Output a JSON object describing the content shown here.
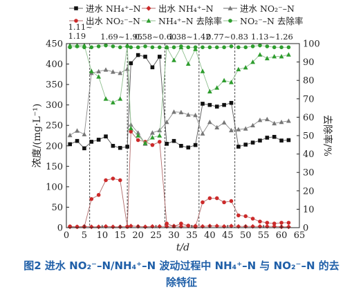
{
  "chart_data": {
    "type": "line",
    "x": [
      1,
      2,
      3,
      4,
      5,
      6,
      7,
      8,
      9,
      10,
      11,
      12,
      13,
      14,
      15,
      16,
      17,
      18,
      19,
      20,
      21,
      22,
      23,
      24,
      25,
      26,
      27,
      28,
      29,
      30,
      31,
      32,
      33,
      34,
      35,
      36,
      37,
      38,
      39,
      40,
      41,
      42,
      43,
      44,
      45,
      46,
      47,
      48,
      49,
      50,
      51,
      52,
      53,
      54,
      55,
      56,
      57,
      58,
      59,
      60,
      61,
      62
    ],
    "xlabel": "t/d",
    "xlim": [
      0,
      65
    ],
    "xticks": [
      0,
      5,
      10,
      15,
      20,
      25,
      30,
      35,
      40,
      45,
      50,
      55,
      60,
      65
    ],
    "ylabel": "浓度/(mg·L⁻¹)",
    "ylim": [
      0,
      450
    ],
    "yticks": [
      0,
      50,
      100,
      150,
      200,
      250,
      300,
      350,
      400,
      450
    ],
    "y2label": "去除率/%",
    "y2lim": [
      0,
      100
    ],
    "y2ticks": [
      0,
      10,
      20,
      30,
      40,
      50,
      60,
      70,
      80,
      90,
      100
    ],
    "phase_boundaries": [
      6.5,
      17,
      27.5,
      37,
      47
    ],
    "phase_labels": [
      {
        "text": "1.11~\n1.19",
        "x": 0.5
      },
      {
        "text": "1.69~1.95",
        "x": 9.5
      },
      {
        "text": "0.58~0.60",
        "x": 19
      },
      {
        "text": "1.38~1.42",
        "x": 28.5
      },
      {
        "text": "0.77~0.83",
        "x": 39
      },
      {
        "text": "1.13~1.26",
        "x": 51.5
      }
    ],
    "series": [
      {
        "name": "进水 NH₄⁺–N",
        "axis": "left",
        "color": "#111111",
        "marker": "square",
        "points": [
          [
            1,
            204
          ],
          [
            3,
            212
          ],
          [
            5,
            194
          ],
          [
            7,
            210
          ],
          [
            9,
            215
          ],
          [
            11,
            223
          ],
          [
            13,
            200
          ],
          [
            15,
            195
          ],
          [
            17,
            198
          ],
          [
            18,
            402
          ],
          [
            20,
            422
          ],
          [
            22,
            418
          ],
          [
            24,
            392
          ],
          [
            26,
            418
          ],
          [
            28,
            205
          ],
          [
            30,
            212
          ],
          [
            32,
            200
          ],
          [
            34,
            196
          ],
          [
            36,
            202
          ],
          [
            38,
            303
          ],
          [
            40,
            300
          ],
          [
            42,
            296
          ],
          [
            44,
            300
          ],
          [
            46,
            305
          ],
          [
            48,
            198
          ],
          [
            50,
            203
          ],
          [
            52,
            208
          ],
          [
            54,
            213
          ],
          [
            56,
            220
          ],
          [
            58,
            222
          ],
          [
            60,
            213
          ],
          [
            62,
            214
          ]
        ]
      },
      {
        "name": "出水 NH₄⁺–N",
        "axis": "left",
        "color": "#cc2a2a",
        "marker": "diamond",
        "points": [
          [
            1,
            2
          ],
          [
            3,
            2
          ],
          [
            5,
            3
          ],
          [
            7,
            2
          ],
          [
            9,
            2
          ],
          [
            11,
            3
          ],
          [
            13,
            2
          ],
          [
            15,
            2
          ],
          [
            17,
            3
          ],
          [
            18,
            4
          ],
          [
            20,
            3
          ],
          [
            22,
            2
          ],
          [
            24,
            3
          ],
          [
            26,
            3
          ],
          [
            28,
            3
          ],
          [
            30,
            4
          ],
          [
            32,
            3
          ],
          [
            34,
            4
          ],
          [
            36,
            4
          ],
          [
            38,
            3
          ],
          [
            40,
            4
          ],
          [
            42,
            4
          ],
          [
            44,
            3
          ],
          [
            46,
            4
          ],
          [
            48,
            3
          ],
          [
            50,
            3
          ],
          [
            52,
            3
          ],
          [
            54,
            3
          ],
          [
            56,
            3
          ],
          [
            58,
            3
          ],
          [
            60,
            2
          ],
          [
            62,
            2
          ]
        ]
      },
      {
        "name": "进水 NO₂⁻–N",
        "axis": "left",
        "color": "#777777",
        "marker": "triangle",
        "points": [
          [
            1,
            226
          ],
          [
            3,
            237
          ],
          [
            5,
            228
          ],
          [
            7,
            378
          ],
          [
            9,
            382
          ],
          [
            11,
            386
          ],
          [
            13,
            381
          ],
          [
            15,
            378
          ],
          [
            17,
            388
          ],
          [
            18,
            252
          ],
          [
            20,
            232
          ],
          [
            22,
            205
          ],
          [
            24,
            232
          ],
          [
            26,
            238
          ],
          [
            28,
            258
          ],
          [
            30,
            283
          ],
          [
            32,
            282
          ],
          [
            34,
            276
          ],
          [
            36,
            275
          ],
          [
            38,
            230
          ],
          [
            40,
            258
          ],
          [
            42,
            245
          ],
          [
            44,
            257
          ],
          [
            46,
            238
          ],
          [
            48,
            240
          ],
          [
            50,
            242
          ],
          [
            52,
            250
          ],
          [
            54,
            263
          ],
          [
            56,
            265
          ],
          [
            58,
            255
          ],
          [
            60,
            258
          ],
          [
            62,
            261
          ]
        ]
      },
      {
        "name": "出水 NO₂⁻–N",
        "axis": "left",
        "color": "#cc2a2a",
        "marker": "circle",
        "points": [
          [
            1,
            3
          ],
          [
            3,
            2
          ],
          [
            5,
            2
          ],
          [
            7,
            70
          ],
          [
            9,
            80
          ],
          [
            11,
            116
          ],
          [
            13,
            120
          ],
          [
            15,
            116
          ],
          [
            17,
            2
          ],
          [
            18,
            235
          ],
          [
            20,
            214
          ],
          [
            22,
            210
          ],
          [
            24,
            202
          ],
          [
            26,
            210
          ],
          [
            28,
            10
          ],
          [
            30,
            3
          ],
          [
            32,
            10
          ],
          [
            34,
            5
          ],
          [
            36,
            2
          ],
          [
            38,
            62
          ],
          [
            40,
            72
          ],
          [
            42,
            72
          ],
          [
            44,
            62
          ],
          [
            46,
            65
          ],
          [
            48,
            30
          ],
          [
            50,
            28
          ],
          [
            52,
            22
          ],
          [
            54,
            15
          ],
          [
            56,
            12
          ],
          [
            58,
            10
          ],
          [
            60,
            12
          ],
          [
            62,
            12
          ]
        ]
      },
      {
        "name": "NH₄⁺–N 去除率",
        "axis": "right",
        "color": "#2e9d2e",
        "marker": "triangle",
        "points": [
          [
            1,
            99
          ],
          [
            3,
            99
          ],
          [
            5,
            99
          ],
          [
            7,
            85
          ],
          [
            9,
            82
          ],
          [
            11,
            70
          ],
          [
            13,
            68
          ],
          [
            15,
            70
          ],
          [
            17,
            99
          ],
          [
            18,
            54
          ],
          [
            20,
            50
          ],
          [
            22,
            46
          ],
          [
            24,
            49
          ],
          [
            26,
            50
          ],
          [
            28,
            98
          ],
          [
            30,
            91
          ],
          [
            32,
            98
          ],
          [
            34,
            89
          ],
          [
            36,
            97
          ],
          [
            38,
            85
          ],
          [
            40,
            74
          ],
          [
            42,
            76
          ],
          [
            44,
            80
          ],
          [
            46,
            79
          ],
          [
            48,
            86
          ],
          [
            50,
            87
          ],
          [
            52,
            90
          ],
          [
            54,
            94
          ],
          [
            56,
            92
          ],
          [
            58,
            93
          ],
          [
            60,
            93
          ],
          [
            62,
            94
          ]
        ]
      },
      {
        "name": "NO₂⁻–N 去除率",
        "axis": "right",
        "color": "#2e9d2e",
        "marker": "circle",
        "points": [
          [
            1,
            98
          ],
          [
            3,
            98.5
          ],
          [
            5,
            98
          ],
          [
            7,
            98
          ],
          [
            9,
            98.5
          ],
          [
            11,
            99
          ],
          [
            13,
            98.5
          ],
          [
            15,
            98
          ],
          [
            17,
            98.5
          ],
          [
            18,
            98
          ],
          [
            20,
            98
          ],
          [
            22,
            98.5
          ],
          [
            24,
            98
          ],
          [
            26,
            98
          ],
          [
            28,
            98
          ],
          [
            30,
            98
          ],
          [
            32,
            98.5
          ],
          [
            34,
            98
          ],
          [
            36,
            98
          ],
          [
            38,
            98
          ],
          [
            40,
            98
          ],
          [
            42,
            98
          ],
          [
            44,
            98
          ],
          [
            46,
            98.5
          ],
          [
            48,
            98
          ],
          [
            50,
            98
          ],
          [
            52,
            98.5
          ],
          [
            54,
            99
          ],
          [
            56,
            98.5
          ],
          [
            58,
            98
          ],
          [
            60,
            98
          ],
          [
            62,
            98
          ]
        ]
      }
    ],
    "legend_placement": "top",
    "grid": false
  },
  "caption": {
    "line1": "图2   进水 NO₂⁻–N/NH₄⁺–N 波动过程中 NH₄⁺–N 与 NO₂⁻–N 的去",
    "line2": "除特征"
  }
}
